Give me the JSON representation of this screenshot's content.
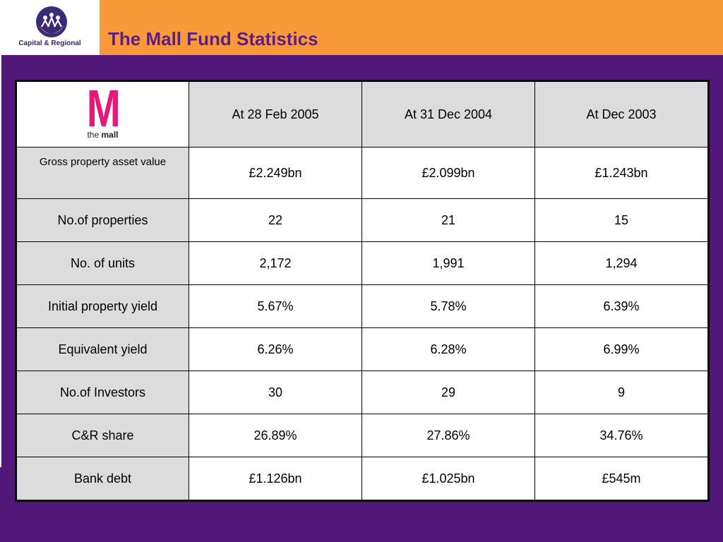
{
  "header": {
    "title": "The Mall Fund Statistics",
    "brand": "Capital & Regional"
  },
  "colors": {
    "background": "#51187a",
    "header_band": "#f99a3a",
    "title": "#5b1f86",
    "mall_logo": "#e4197a",
    "row_shade": "#dcdcdc"
  },
  "table": {
    "logo": {
      "letter": "M",
      "prefix": "the",
      "name": "mall"
    },
    "columns": [
      "At 28 Feb 2005",
      "At 31 Dec 2004",
      "At Dec 2003"
    ],
    "rows": [
      {
        "label": "Gross property asset value",
        "values": [
          "£2.249bn",
          "£2.099bn",
          "£1.243bn"
        ]
      },
      {
        "label": "No.of properties",
        "values": [
          "22",
          "21",
          "15"
        ]
      },
      {
        "label": "No. of units",
        "values": [
          "2,172",
          "1,991",
          "1,294"
        ]
      },
      {
        "label": "Initial property yield",
        "values": [
          "5.67%",
          "5.78%",
          "6.39%"
        ]
      },
      {
        "label": "Equivalent yield",
        "values": [
          "6.26%",
          "6.28%",
          "6.99%"
        ]
      },
      {
        "label": "No.of Investors",
        "values": [
          "30",
          "29",
          "9"
        ]
      },
      {
        "label": "C&R share",
        "values": [
          "26.89%",
          "27.86%",
          "34.76%"
        ]
      },
      {
        "label": "Bank debt",
        "values": [
          "£1.126bn",
          "£1.025bn",
          "£545m"
        ]
      }
    ]
  }
}
